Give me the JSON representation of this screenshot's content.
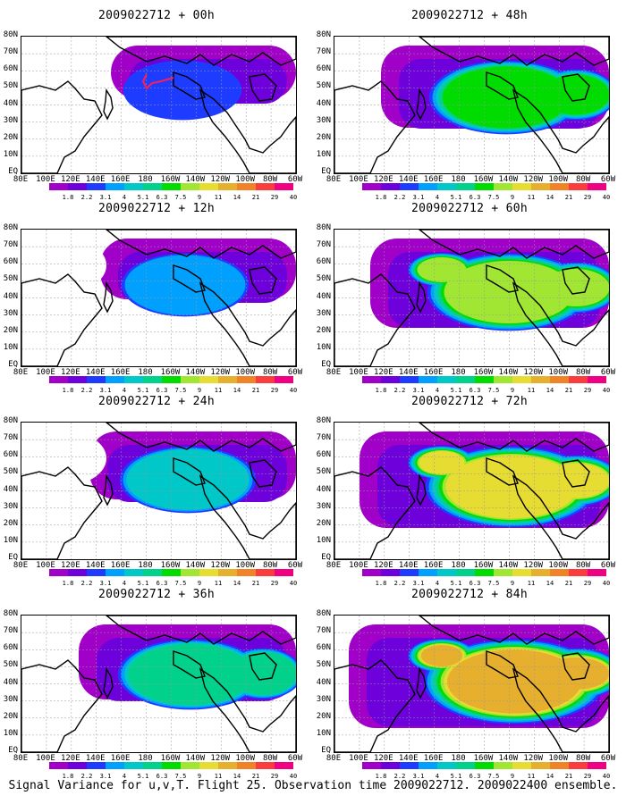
{
  "panels": [
    {
      "title": "2009022712 + 00h",
      "intensity": 0,
      "col": 0,
      "row": 0,
      "marker": true
    },
    {
      "title": "2009022712 + 48h",
      "intensity": 4,
      "col": 1,
      "row": 0,
      "marker": false
    },
    {
      "title": "2009022712 + 12h",
      "intensity": 1,
      "col": 0,
      "row": 1,
      "marker": false
    },
    {
      "title": "2009022712 + 60h",
      "intensity": 5,
      "col": 1,
      "row": 1,
      "marker": false
    },
    {
      "title": "2009022712 + 24h",
      "intensity": 2,
      "col": 0,
      "row": 2,
      "marker": false
    },
    {
      "title": "2009022712 + 72h",
      "intensity": 6,
      "col": 1,
      "row": 2,
      "marker": false
    },
    {
      "title": "2009022712 + 36h",
      "intensity": 3,
      "col": 0,
      "row": 3,
      "marker": false
    },
    {
      "title": "2009022712 + 84h",
      "intensity": 7,
      "col": 1,
      "row": 3,
      "marker": false
    }
  ],
  "lat_labels": [
    "80N",
    "70N",
    "60N",
    "50N",
    "40N",
    "30N",
    "20N",
    "10N",
    "EQ"
  ],
  "lon_labels": [
    "80E",
    "100E",
    "120E",
    "140E",
    "160E",
    "180",
    "160W",
    "140W",
    "120W",
    "100W",
    "80W",
    "60W"
  ],
  "colorbar": {
    "levels": [
      "1.8",
      "2.2",
      "3.1",
      "4",
      "5.1",
      "6.3",
      "7.5",
      "9",
      "11",
      "14",
      "21",
      "29",
      "40"
    ],
    "colors": [
      "#a000c8",
      "#6e00dc",
      "#1e3cff",
      "#00a0ff",
      "#00c8c8",
      "#00d28c",
      "#00dc00",
      "#a0e632",
      "#e6dc32",
      "#e6af2d",
      "#f08228",
      "#fa3c3c",
      "#f00082"
    ]
  },
  "footer": "Signal Variance for u,v,T. Flight 25. Observation time 2009022712. 2009022400 ensemble."
}
